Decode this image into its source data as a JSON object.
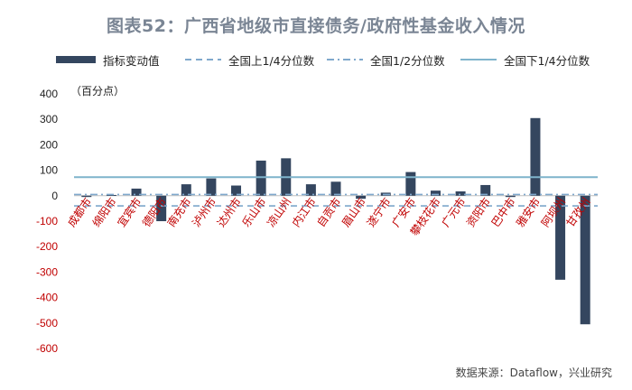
{
  "title": "图表52：广西省地级市直接债务/政府性基金收入情况",
  "unit_label": "（百分点）",
  "source": "数据来源：Dataflow，兴业研究",
  "legend": {
    "bar": "指标变动值",
    "q1": "全国上1/4分位数",
    "median": "全国1/2分位数",
    "q3": "全国下1/4分位数"
  },
  "colors": {
    "bar": "#34465f",
    "q1": "#7fa8cc",
    "median": "#7fa8cc",
    "q3": "#7fb4cc",
    "negative_tick": "#c00000",
    "category_label": "#c00000"
  },
  "chart_data": {
    "type": "bar",
    "categories": [
      "成都市",
      "绵阳市",
      "宜宾市",
      "德阳市",
      "南充市",
      "泸州市",
      "达州市",
      "乐山市",
      "凉山州",
      "内江市",
      "自贡市",
      "眉山市",
      "遂宁市",
      "广安市",
      "攀枝花市",
      "广元市",
      "资阳市",
      "巴中市",
      "雅安市",
      "阿坝州",
      "甘孜州"
    ],
    "series": [
      {
        "name": "指标变动值",
        "values": [
          -5,
          3,
          28,
          -100,
          45,
          68,
          40,
          138,
          147,
          45,
          55,
          -12,
          12,
          93,
          20,
          17,
          42,
          -5,
          305,
          -330,
          -505
        ]
      }
    ],
    "reference_lines": [
      {
        "name": "全国上1/4分位数",
        "value": -40,
        "style": "dashed"
      },
      {
        "name": "全国1/2分位数",
        "value": 5,
        "style": "dashdot"
      },
      {
        "name": "全国下1/4分位数",
        "value": 73,
        "style": "solid"
      }
    ],
    "ylim": [
      -600,
      400
    ],
    "yticks": [
      400,
      300,
      200,
      100,
      0,
      -100,
      -200,
      -300,
      -400,
      -500,
      -600
    ],
    "grid": false,
    "legend_position": "top"
  }
}
